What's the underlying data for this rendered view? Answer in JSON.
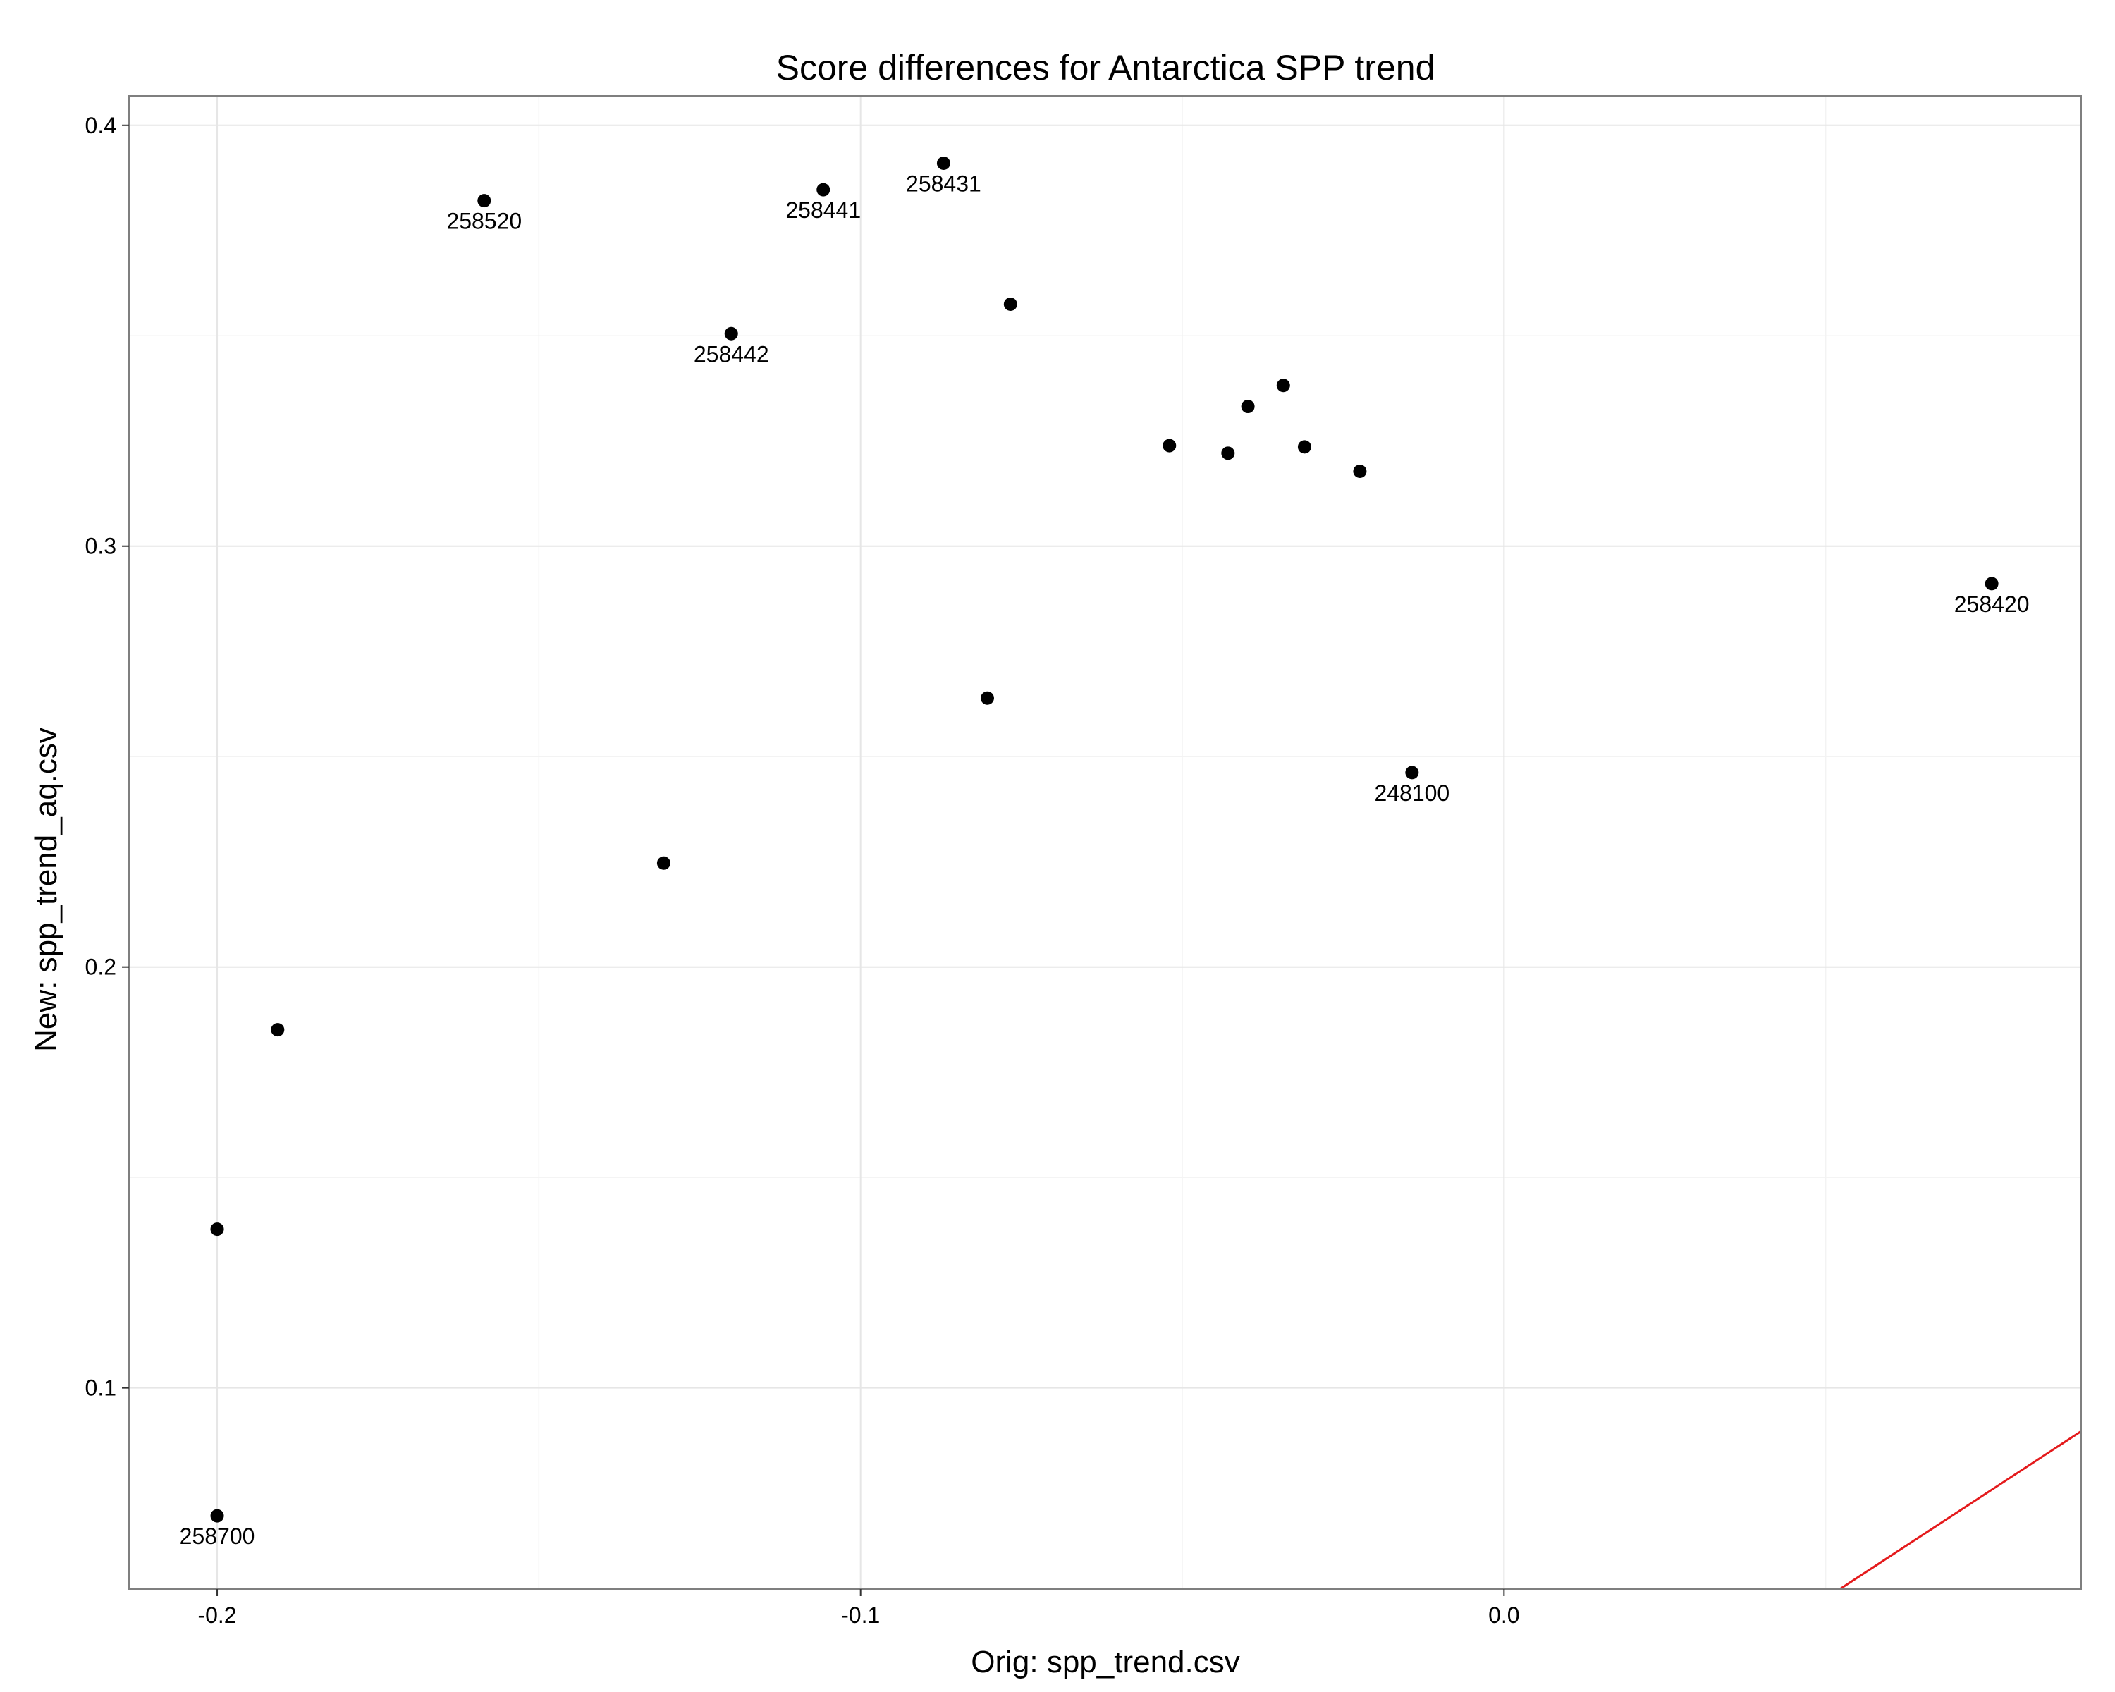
{
  "chart_data": {
    "type": "scatter",
    "title": "Score differences for Antarctica SPP trend",
    "xlabel": "Orig: spp_trend.csv",
    "ylabel": "New: spp_trend_aq.csv",
    "xlim": [
      -0.2137,
      0.0897
    ],
    "ylim": [
      0.0522,
      0.407
    ],
    "x_ticks": [
      -0.2,
      -0.1,
      0.0
    ],
    "x_tick_labels": [
      "-0.2",
      "-0.1",
      "0.0"
    ],
    "y_ticks": [
      0.1,
      0.2,
      0.3,
      0.4
    ],
    "y_tick_labels": [
      "0.1",
      "0.2",
      "0.3",
      "0.4"
    ],
    "grid": true,
    "points": [
      {
        "x": -0.1585,
        "y": 0.3821,
        "label": "258520"
      },
      {
        "x": -0.1058,
        "y": 0.3847,
        "label": "258441"
      },
      {
        "x": -0.0871,
        "y": 0.391,
        "label": "258431"
      },
      {
        "x": -0.1201,
        "y": 0.3505,
        "label": "258442"
      },
      {
        "x": -0.0767,
        "y": 0.3575,
        "label": ""
      },
      {
        "x": -0.052,
        "y": 0.3239,
        "label": ""
      },
      {
        "x": -0.0429,
        "y": 0.3221,
        "label": ""
      },
      {
        "x": -0.0398,
        "y": 0.3332,
        "label": ""
      },
      {
        "x": -0.0343,
        "y": 0.3382,
        "label": ""
      },
      {
        "x": -0.031,
        "y": 0.3236,
        "label": ""
      },
      {
        "x": -0.0224,
        "y": 0.3178,
        "label": ""
      },
      {
        "x": 0.0758,
        "y": 0.2911,
        "label": "258420"
      },
      {
        "x": -0.0803,
        "y": 0.2639,
        "label": ""
      },
      {
        "x": -0.0143,
        "y": 0.2462,
        "label": "248100"
      },
      {
        "x": -0.1306,
        "y": 0.2247,
        "label": ""
      },
      {
        "x": -0.1906,
        "y": 0.1851,
        "label": ""
      },
      {
        "x": -0.2,
        "y": 0.1377,
        "label": ""
      },
      {
        "x": -0.2,
        "y": 0.0696,
        "label": "258700"
      }
    ],
    "reference_line": {
      "slope": 1,
      "intercept": 0,
      "color": "#e41a1c"
    }
  }
}
